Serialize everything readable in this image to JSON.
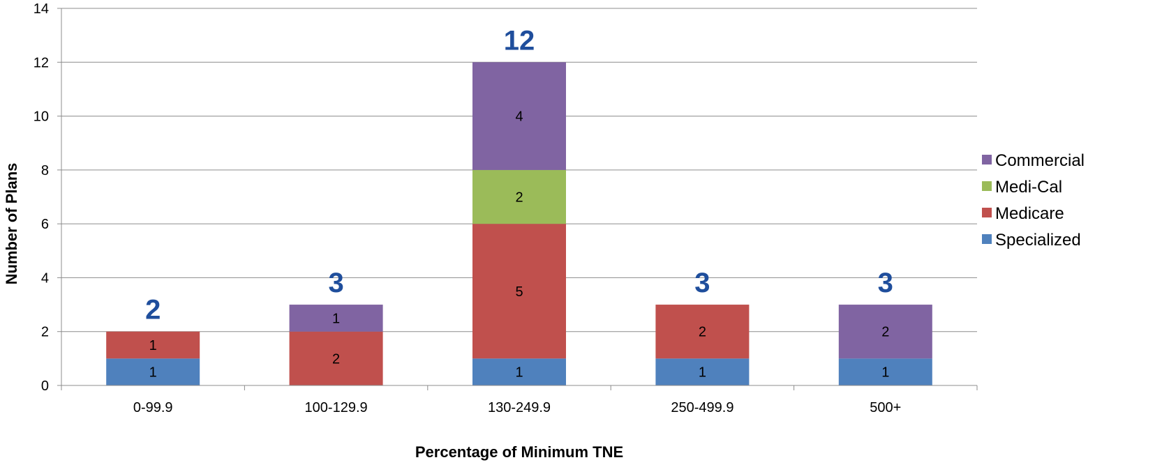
{
  "chart_data": {
    "type": "bar",
    "stacked": true,
    "title": "",
    "xlabel": "Percentage of Minimum TNE",
    "ylabel": "Number of Plans",
    "ylim": [
      0,
      14
    ],
    "yticks": [
      0,
      2,
      4,
      6,
      8,
      10,
      12,
      14
    ],
    "grid": true,
    "legend_position": "right",
    "categories": [
      "0-99.9",
      "100-129.9",
      "130-249.9",
      "250-499.9",
      "500+"
    ],
    "series": [
      {
        "name": "Specialized",
        "color": "#4f81bd",
        "values": [
          1,
          0,
          1,
          1,
          1
        ]
      },
      {
        "name": "Medicare",
        "color": "#c0504d",
        "values": [
          1,
          2,
          5,
          2,
          0
        ]
      },
      {
        "name": "Medi-Cal",
        "color": "#9bbb59",
        "values": [
          0,
          0,
          2,
          0,
          0
        ]
      },
      {
        "name": "Commercial",
        "color": "#8064a2",
        "values": [
          0,
          1,
          4,
          0,
          2
        ]
      }
    ],
    "totals": [
      2,
      3,
      12,
      3,
      3
    ],
    "legend_order": [
      "Commercial",
      "Medi-Cal",
      "Medicare",
      "Specialized"
    ]
  }
}
